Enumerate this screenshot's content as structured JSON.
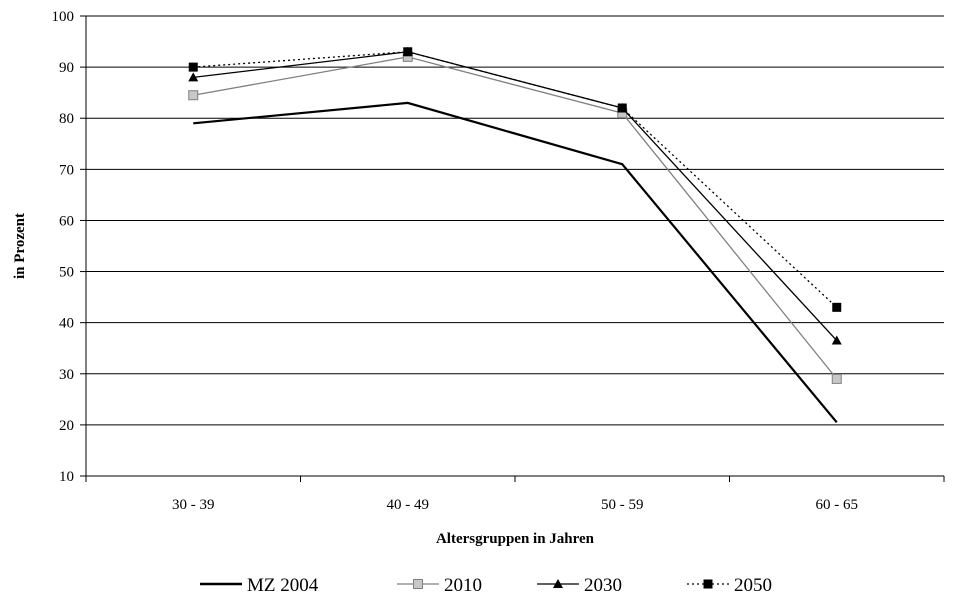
{
  "chart_data": {
    "type": "line",
    "title": "",
    "xlabel": "Altersgruppen in Jahren",
    "ylabel": "in Prozent",
    "ylim": [
      10,
      100
    ],
    "yticks": [
      10,
      20,
      30,
      40,
      50,
      60,
      70,
      80,
      90,
      100
    ],
    "grid": true,
    "legend_position": "bottom",
    "categories": [
      "30 - 39",
      "40 - 49",
      "50 - 59",
      "60 - 65"
    ],
    "series": [
      {
        "name": "MZ 2004",
        "values": [
          79,
          83,
          71,
          20.5
        ],
        "color": "#000000",
        "marker": "none",
        "dash": "solid"
      },
      {
        "name": "2010",
        "values": [
          84.5,
          92,
          81,
          29
        ],
        "color": "#808080",
        "marker": "square-open",
        "dash": "solid"
      },
      {
        "name": "2030",
        "values": [
          88,
          93,
          82,
          36.5
        ],
        "color": "#000000",
        "marker": "triangle",
        "dash": "solid"
      },
      {
        "name": "2050",
        "values": [
          90,
          93,
          82,
          43
        ],
        "color": "#000000",
        "marker": "square",
        "dash": "dotted"
      }
    ]
  }
}
